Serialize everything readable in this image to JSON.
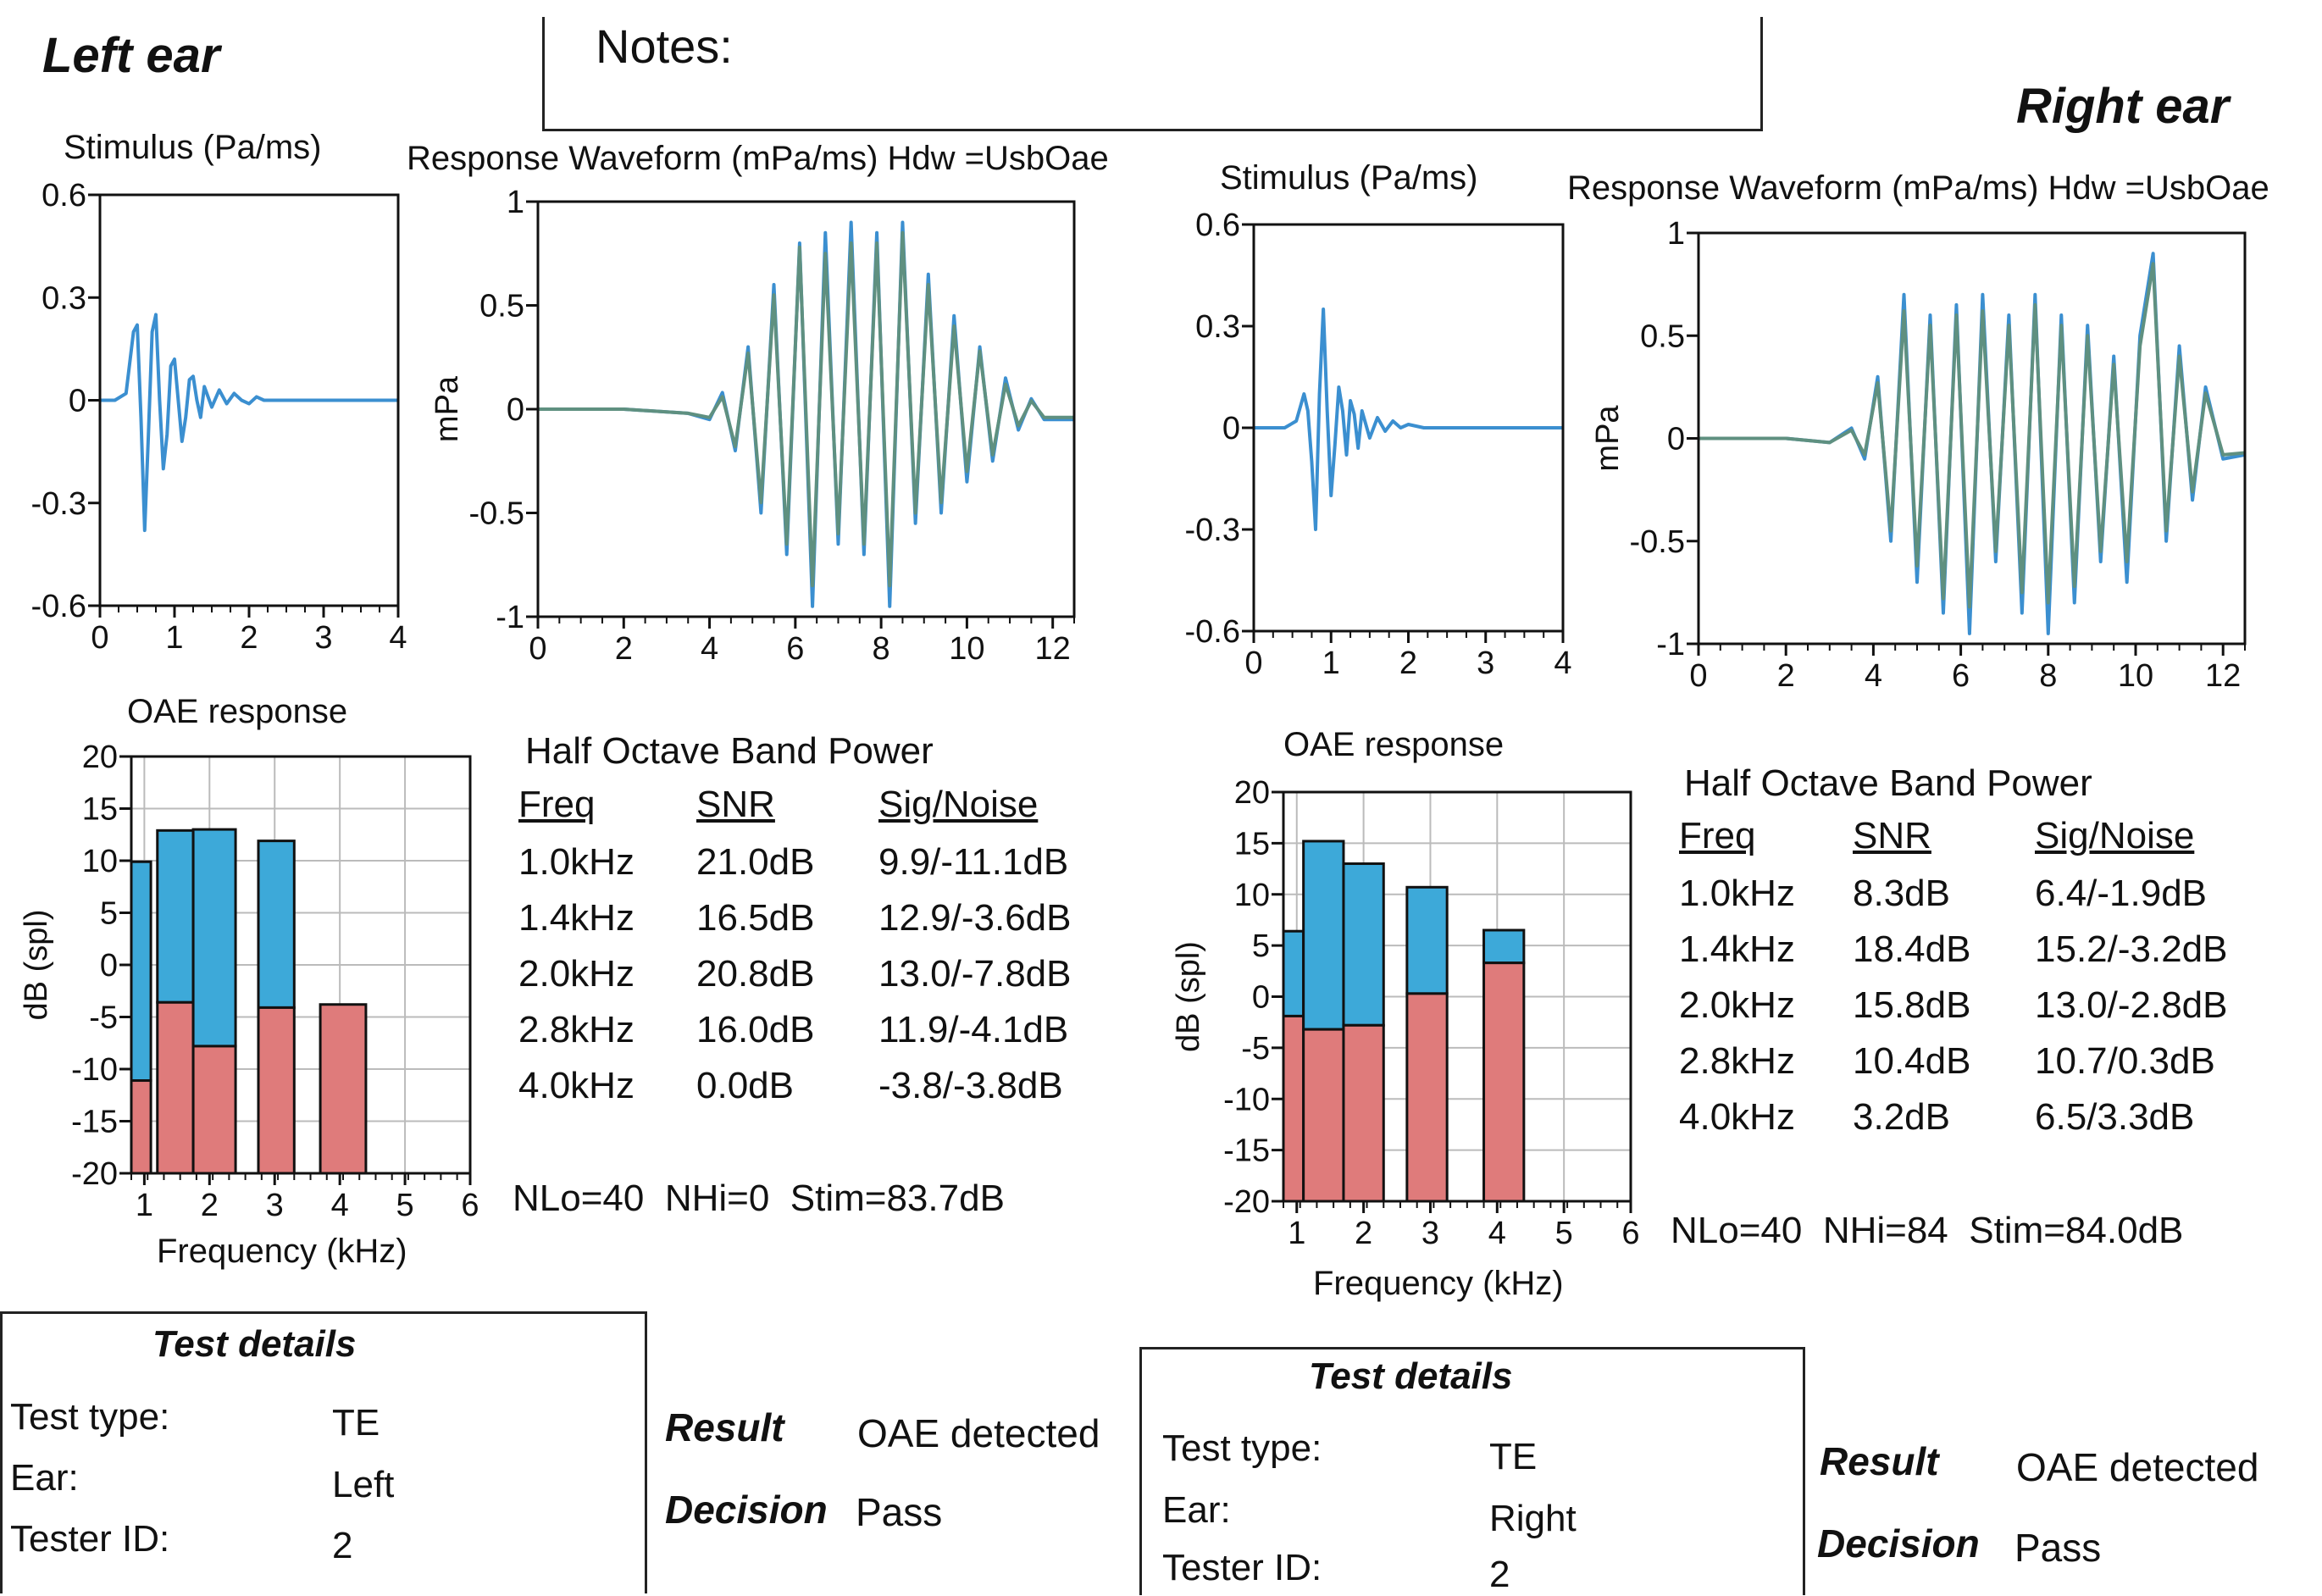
{
  "notes_label": "Notes:",
  "left": {
    "ear_title": "Left ear",
    "stimulus_title": "Stimulus (Pa/ms)",
    "response_title": "Response Waveform (mPa/ms) Hdw =UsbOae",
    "oae_title": "OAE response",
    "band_title": "Half Octave Band Power",
    "band_headers": [
      "Freq",
      "SNR",
      "Sig/Noise"
    ],
    "band_rows": [
      [
        "1.0kHz",
        "21.0dB",
        "9.9/-11.1dB"
      ],
      [
        "1.4kHz",
        "16.5dB",
        "12.9/-3.6dB"
      ],
      [
        "2.0kHz",
        "20.8dB",
        "13.0/-7.8dB"
      ],
      [
        "2.8kHz",
        "16.0dB",
        "11.9/-4.1dB"
      ],
      [
        "4.0kHz",
        "0.0dB",
        "-3.8/-3.8dB"
      ]
    ],
    "nlo": "NLo=40",
    "nhi": "NHi=0",
    "stim": "Stim=83.7dB",
    "test_details_title": "Test details",
    "test_rows": [
      [
        "Test type:",
        "TE"
      ],
      [
        "Ear:",
        "Left"
      ],
      [
        "Tester ID:",
        "2"
      ]
    ],
    "result_label": "Result",
    "result_value": "OAE detected",
    "decision_label": "Decision",
    "decision_value": "Pass"
  },
  "right": {
    "ear_title": "Right ear",
    "stimulus_title": "Stimulus (Pa/ms)",
    "response_title": "Response Waveform (mPa/ms) Hdw =UsbOae",
    "oae_title": "OAE response",
    "band_title": "Half Octave Band Power",
    "band_headers": [
      "Freq",
      "SNR",
      "Sig/Noise"
    ],
    "band_rows": [
      [
        "1.0kHz",
        "8.3dB",
        "6.4/-1.9dB"
      ],
      [
        "1.4kHz",
        "18.4dB",
        "15.2/-3.2dB"
      ],
      [
        "2.0kHz",
        "15.8dB",
        "13.0/-2.8dB"
      ],
      [
        "2.8kHz",
        "10.4dB",
        "10.7/0.3dB"
      ],
      [
        "4.0kHz",
        "3.2dB",
        "6.5/3.3dB"
      ]
    ],
    "nlo": "NLo=40",
    "nhi": "NHi=84",
    "stim": "Stim=84.0dB",
    "test_details_title": "Test details",
    "test_rows": [
      [
        "Test type:",
        "TE"
      ],
      [
        "Ear:",
        "Right"
      ],
      [
        "Tester ID:",
        "2"
      ]
    ],
    "result_label": "Result",
    "result_value": "OAE detected",
    "decision_label": "Decision",
    "decision_value": "Pass"
  },
  "chart_data": [
    {
      "id": "left-stimulus",
      "type": "line",
      "xlim": [
        0,
        4
      ],
      "ylim": [
        -0.6,
        0.6
      ],
      "xticks": [
        "0",
        "1",
        "2",
        "3",
        "4"
      ],
      "yticks": [
        "0.6",
        "0.3",
        "0",
        "-0.3",
        "-0.6"
      ],
      "colors": {
        "stim": "#3b8fd0"
      },
      "series": [
        {
          "x": [
            0,
            0.2,
            0.35,
            0.45,
            0.5,
            0.55,
            0.6,
            0.65,
            0.7,
            0.75,
            0.8,
            0.85,
            0.9,
            0.95,
            1.0,
            1.05,
            1.1,
            1.15,
            1.2,
            1.25,
            1.3,
            1.35,
            1.4,
            1.5,
            1.6,
            1.7,
            1.8,
            1.9,
            2.0,
            2.1,
            2.2,
            2.4,
            2.6,
            2.8,
            3.0,
            3.2,
            3.4,
            3.6,
            3.8,
            4.0
          ],
          "y": [
            0,
            0,
            0.02,
            0.2,
            0.22,
            -0.05,
            -0.38,
            -0.1,
            0.2,
            0.25,
            0.0,
            -0.2,
            -0.1,
            0.1,
            0.12,
            0.0,
            -0.12,
            -0.05,
            0.06,
            0.07,
            0.0,
            -0.05,
            0.04,
            -0.02,
            0.03,
            -0.01,
            0.02,
            0.0,
            -0.01,
            0.01,
            0.0,
            0.0,
            0.0,
            0.0,
            0.0,
            0.0,
            0.0,
            0.0,
            0.0,
            0.0
          ]
        }
      ]
    },
    {
      "id": "left-response",
      "type": "line",
      "xlim": [
        0,
        12.5
      ],
      "ylim": [
        -1,
        1
      ],
      "xticks": [
        "0",
        "2",
        "4",
        "6",
        "8",
        "10",
        "12"
      ],
      "yticks": [
        "1",
        "0.5",
        "0",
        "-0.5",
        "-1"
      ],
      "ylabel": "mPa",
      "colors": {
        "a": "#3b8fd0",
        "b": "#5f9080"
      },
      "series": [
        {
          "x": [
            0,
            2,
            3.5,
            4,
            4.3,
            4.6,
            4.9,
            5.2,
            5.5,
            5.8,
            6.1,
            6.4,
            6.7,
            7.0,
            7.3,
            7.6,
            7.9,
            8.2,
            8.5,
            8.8,
            9.1,
            9.4,
            9.7,
            10.0,
            10.3,
            10.6,
            10.9,
            11.2,
            11.5,
            11.8,
            12.5
          ],
          "y": [
            0,
            0,
            -0.02,
            -0.05,
            0.08,
            -0.2,
            0.3,
            -0.5,
            0.6,
            -0.7,
            0.8,
            -0.95,
            0.85,
            -0.65,
            0.9,
            -0.7,
            0.85,
            -0.95,
            0.9,
            -0.55,
            0.65,
            -0.5,
            0.45,
            -0.35,
            0.3,
            -0.25,
            0.15,
            -0.1,
            0.05,
            -0.05,
            -0.05
          ]
        },
        {
          "x": [
            0,
            2,
            3.5,
            4,
            4.3,
            4.6,
            4.9,
            5.2,
            5.5,
            5.8,
            6.1,
            6.4,
            6.7,
            7.0,
            7.3,
            7.6,
            7.9,
            8.2,
            8.5,
            8.8,
            9.1,
            9.4,
            9.7,
            10.0,
            10.3,
            10.6,
            10.9,
            11.2,
            11.5,
            11.8,
            12.5
          ],
          "y": [
            0,
            0,
            -0.02,
            -0.04,
            0.06,
            -0.18,
            0.27,
            -0.45,
            0.55,
            -0.65,
            0.78,
            -0.85,
            0.75,
            -0.6,
            0.8,
            -0.65,
            0.8,
            -0.85,
            0.85,
            -0.5,
            0.6,
            -0.45,
            0.4,
            -0.3,
            0.28,
            -0.22,
            0.12,
            -0.08,
            0.04,
            -0.04,
            -0.04
          ]
        }
      ]
    },
    {
      "id": "left-oae",
      "type": "bar",
      "xlim": [
        0.8,
        6
      ],
      "ylim": [
        -20,
        20
      ],
      "xticks": [
        "1",
        "2",
        "3",
        "4",
        "5",
        "6"
      ],
      "yticks": [
        "20",
        "15",
        "10",
        "5",
        "0",
        "-5",
        "-10",
        "-15",
        "-20"
      ],
      "xlabel": "Frequency (kHz)",
      "ylabel": "dB (spl)",
      "colors": {
        "signal": "#3da9d9",
        "noise": "#df7b7b"
      },
      "bands": [
        {
          "x0": 0.8,
          "x1": 1.1,
          "signal": 9.9,
          "noise": -11.1
        },
        {
          "x0": 1.2,
          "x1": 1.75,
          "signal": 12.9,
          "noise": -3.6
        },
        {
          "x0": 1.75,
          "x1": 2.4,
          "signal": 13.0,
          "noise": -7.8
        },
        {
          "x0": 2.75,
          "x1": 3.3,
          "signal": 11.9,
          "noise": -4.1
        },
        {
          "x0": 3.7,
          "x1": 4.4,
          "signal": -3.8,
          "noise": -3.8
        }
      ]
    },
    {
      "id": "right-stimulus",
      "type": "line",
      "xlim": [
        0,
        4
      ],
      "ylim": [
        -0.6,
        0.6
      ],
      "xticks": [
        "0",
        "1",
        "2",
        "3",
        "4"
      ],
      "yticks": [
        "0.6",
        "0.3",
        "0",
        "-0.3",
        "-0.6"
      ],
      "colors": {
        "stim": "#3b8fd0"
      },
      "series": [
        {
          "x": [
            0,
            0.4,
            0.55,
            0.65,
            0.7,
            0.75,
            0.8,
            0.85,
            0.9,
            0.95,
            1.0,
            1.05,
            1.1,
            1.15,
            1.2,
            1.25,
            1.3,
            1.35,
            1.4,
            1.5,
            1.6,
            1.7,
            1.8,
            1.9,
            2.0,
            2.2,
            2.4,
            2.6,
            2.8,
            3.0,
            3.2,
            3.4,
            3.6,
            3.8,
            4.0
          ],
          "y": [
            0,
            0,
            0.02,
            0.1,
            0.05,
            -0.1,
            -0.3,
            0.1,
            0.35,
            0.05,
            -0.2,
            -0.05,
            0.12,
            0.05,
            -0.08,
            0.08,
            0.04,
            -0.06,
            0.05,
            -0.03,
            0.03,
            -0.01,
            0.02,
            0.0,
            0.01,
            0.0,
            0.0,
            0.0,
            0.0,
            0.0,
            0.0,
            0.0,
            0.0,
            0.0,
            0.0
          ]
        }
      ]
    },
    {
      "id": "right-response",
      "type": "line",
      "xlim": [
        0,
        12.5
      ],
      "ylim": [
        -1,
        1
      ],
      "xticks": [
        "0",
        "2",
        "4",
        "6",
        "8",
        "10",
        "12"
      ],
      "yticks": [
        "1",
        "0.5",
        "0",
        "-0.5",
        "-1"
      ],
      "ylabel": "mPa",
      "colors": {
        "a": "#3b8fd0",
        "b": "#5f9080"
      },
      "series": [
        {
          "x": [
            0,
            2,
            3,
            3.5,
            3.8,
            4.1,
            4.4,
            4.7,
            5.0,
            5.3,
            5.6,
            5.9,
            6.2,
            6.5,
            6.8,
            7.1,
            7.4,
            7.7,
            8.0,
            8.3,
            8.6,
            8.9,
            9.2,
            9.5,
            9.8,
            10.1,
            10.4,
            10.7,
            11.0,
            11.3,
            11.6,
            12.0,
            12.5
          ],
          "y": [
            0,
            0,
            -0.02,
            0.05,
            -0.1,
            0.3,
            -0.5,
            0.7,
            -0.7,
            0.6,
            -0.85,
            0.65,
            -0.95,
            0.7,
            -0.6,
            0.6,
            -0.85,
            0.7,
            -0.95,
            0.6,
            -0.8,
            0.55,
            -0.6,
            0.4,
            -0.7,
            0.5,
            0.9,
            -0.5,
            0.45,
            -0.3,
            0.25,
            -0.1,
            -0.08
          ]
        },
        {
          "x": [
            0,
            2,
            3,
            3.5,
            3.8,
            4.1,
            4.4,
            4.7,
            5.0,
            5.3,
            5.6,
            5.9,
            6.2,
            6.5,
            6.8,
            7.1,
            7.4,
            7.7,
            8.0,
            8.3,
            8.6,
            8.9,
            9.2,
            9.5,
            9.8,
            10.1,
            10.4,
            10.7,
            11.0,
            11.3,
            11.6,
            12.0,
            12.5
          ],
          "y": [
            0,
            0,
            -0.02,
            0.04,
            -0.08,
            0.27,
            -0.45,
            0.62,
            -0.62,
            0.55,
            -0.78,
            0.6,
            -0.82,
            0.62,
            -0.55,
            0.55,
            -0.75,
            0.65,
            -0.8,
            0.55,
            -0.72,
            0.5,
            -0.55,
            0.36,
            -0.6,
            0.45,
            0.85,
            -0.45,
            0.4,
            -0.26,
            0.22,
            -0.08,
            -0.07
          ]
        }
      ]
    },
    {
      "id": "right-oae",
      "type": "bar",
      "xlim": [
        0.8,
        6
      ],
      "ylim": [
        -20,
        20
      ],
      "xticks": [
        "1",
        "2",
        "3",
        "4",
        "5",
        "6"
      ],
      "yticks": [
        "20",
        "15",
        "10",
        "5",
        "0",
        "-5",
        "-10",
        "-15",
        "-20"
      ],
      "xlabel": "Frequency (kHz)",
      "ylabel": "dB (spl)",
      "colors": {
        "signal": "#3da9d9",
        "noise": "#df7b7b"
      },
      "bands": [
        {
          "x0": 0.8,
          "x1": 1.1,
          "signal": 6.4,
          "noise": -1.9
        },
        {
          "x0": 1.1,
          "x1": 1.7,
          "signal": 15.2,
          "noise": -3.2
        },
        {
          "x0": 1.7,
          "x1": 2.3,
          "signal": 13.0,
          "noise": -2.8
        },
        {
          "x0": 2.65,
          "x1": 3.25,
          "signal": 10.7,
          "noise": 0.3
        },
        {
          "x0": 3.8,
          "x1": 4.4,
          "signal": 6.5,
          "noise": 3.3
        }
      ]
    }
  ]
}
